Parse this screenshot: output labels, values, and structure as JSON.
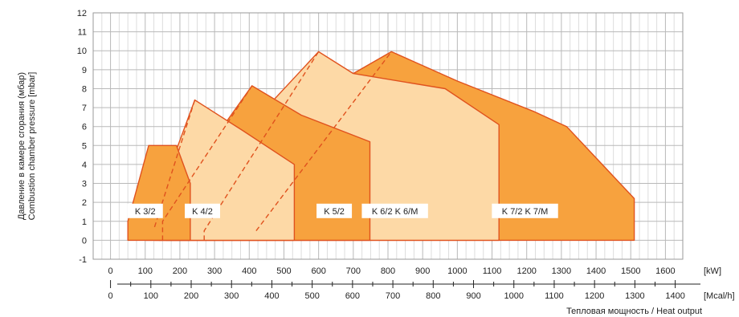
{
  "chart_data": {
    "type": "area",
    "ylabel_ru": "Давление в камере сгорания (мбар)",
    "ylabel_en": "Combustion chamber pressure [mbar]",
    "xlabel": "Тепловая мощность / Heat output",
    "x_unit_kw": "[kW]",
    "x_unit_mcal": "[Mcal/h]",
    "ylim": [
      -1,
      12
    ],
    "xlim_kw": [
      -50,
      1650
    ],
    "y_ticks": [
      -1,
      0,
      1,
      2,
      3,
      4,
      5,
      6,
      7,
      8,
      9,
      10,
      11,
      12
    ],
    "kw_ticks": [
      0,
      100,
      200,
      300,
      400,
      500,
      600,
      700,
      800,
      900,
      1000,
      1100,
      1200,
      1300,
      1400,
      1500,
      1600
    ],
    "mcal_ticks": [
      0,
      100,
      200,
      300,
      400,
      500,
      600,
      700,
      800,
      900,
      1000,
      1100,
      1200,
      1300,
      1400
    ],
    "series": [
      {
        "name": "K 7/2 K 7/M",
        "fill": "#f7a23e",
        "points": [
          [
            140,
            0
          ],
          [
            140,
            1.0
          ],
          [
            160,
            1.3
          ],
          [
            700,
            8.8
          ],
          [
            810,
            9.95
          ],
          [
            1000,
            8.4
          ],
          [
            1220,
            6.8
          ],
          [
            1315,
            6.0
          ],
          [
            1510,
            2.2
          ],
          [
            1510,
            0
          ]
        ],
        "label_x": 1195,
        "label_y": 1.55
      },
      {
        "name": "K 6/2 K 6/M",
        "fill": "#fdd9a6",
        "points": [
          [
            160,
            0
          ],
          [
            160,
            1.3
          ],
          [
            600,
            9.95
          ],
          [
            700,
            8.8
          ],
          [
            965,
            8.0
          ],
          [
            1120,
            6.1
          ],
          [
            1120,
            0
          ]
        ],
        "label_x": 820,
        "label_y": 1.55
      },
      {
        "name": "K 5/2",
        "fill": "#f7a23e",
        "points": [
          [
            127,
            0
          ],
          [
            127,
            0.7
          ],
          [
            320,
            5.9
          ],
          [
            408,
            8.15
          ],
          [
            550,
            6.6
          ],
          [
            748,
            5.2
          ],
          [
            748,
            0
          ]
        ],
        "label_x": 645,
        "label_y": 1.55
      },
      {
        "name": "K 4/2",
        "fill": "#fdd9a6",
        "points": [
          [
            102,
            0
          ],
          [
            102,
            0.4
          ],
          [
            243,
            7.4
          ],
          [
            380,
            5.8
          ],
          [
            530,
            4.0
          ],
          [
            530,
            0
          ]
        ],
        "label_x": 265,
        "label_y": 1.55
      },
      {
        "name": "K 3/2",
        "fill": "#f7a23e",
        "points": [
          [
            50,
            0
          ],
          [
            50,
            1.0
          ],
          [
            110,
            5.0
          ],
          [
            190,
            5.0
          ],
          [
            230,
            3.0
          ],
          [
            230,
            0
          ]
        ],
        "label_x": 100,
        "label_y": 1.55
      }
    ],
    "dashed_lines": [
      [
        [
          127,
          0.7
        ],
        [
          243,
          7.4
        ]
      ],
      [
        [
          150,
          0
        ],
        [
          150,
          1.0
        ],
        [
          408,
          8.15
        ]
      ],
      [
        [
          270,
          0
        ],
        [
          270,
          0.5
        ],
        [
          600,
          9.95
        ]
      ],
      [
        [
          420,
          0.5
        ],
        [
          810,
          9.95
        ]
      ]
    ]
  }
}
